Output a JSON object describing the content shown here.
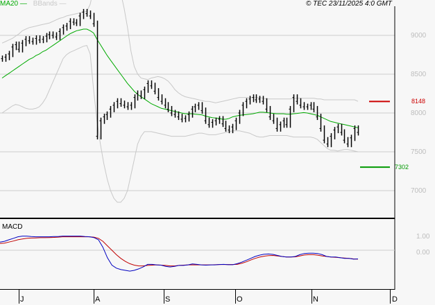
{
  "header": {
    "legend_ma": "MA20",
    "legend_bb": "BBands",
    "copyright": "© TEC 23/11/2025 4:0 GMT"
  },
  "macd_panel": {
    "title": "MACD"
  },
  "colors": {
    "ma20": "#00aa00",
    "bbands": "#c8c8c8",
    "macd": "#0000c0",
    "signal": "#c00000",
    "resistance": "#cc0000",
    "support": "#009900",
    "grid": "#cccccc",
    "bars": "#000000"
  },
  "chart_data": [
    {
      "type": "ohlc",
      "title": "Price",
      "y_ticks": [
        "9000",
        "8500",
        "8000",
        "7500",
        "7000"
      ],
      "ylim": [
        6700,
        9500
      ],
      "x_ticks": [
        "J",
        "A",
        "S",
        "O",
        "N",
        "D"
      ],
      "legend": [
        "MA20",
        "BBands"
      ],
      "annotations": [
        {
          "label": "8148",
          "value": 8148,
          "type": "resistance"
        },
        {
          "label": "7302",
          "value": 7302,
          "type": "support"
        }
      ],
      "closes": [
        8700,
        8720,
        8760,
        8850,
        8880,
        8820,
        8900,
        8950,
        8930,
        8920,
        8960,
        8940,
        8950,
        8990,
        9010,
        9000,
        8980,
        9050,
        9100,
        9120,
        9180,
        9170,
        9160,
        9250,
        9300,
        9280,
        9250,
        9150,
        7700,
        7900,
        7950,
        7980,
        8050,
        8100,
        8150,
        8120,
        8100,
        8080,
        8100,
        8200,
        8250,
        8220,
        8300,
        8380,
        8350,
        8280,
        8200,
        8150,
        8100,
        8050,
        8000,
        7980,
        7950,
        7920,
        7930,
        7980,
        8050,
        8080,
        8100,
        8030,
        7900,
        7850,
        7880,
        7900,
        7920,
        7860,
        7800,
        7780,
        7820,
        7900,
        8000,
        8100,
        8150,
        8180,
        8200,
        8170,
        8180,
        8150,
        8050,
        7950,
        7900,
        7800,
        7850,
        7900,
        7850,
        8050,
        8200,
        8150,
        8100,
        8080,
        8080,
        8100,
        8050,
        7950,
        7800,
        7650,
        7600,
        7700,
        7780,
        7820,
        7750,
        7650,
        7600,
        7680,
        7800,
        7750
      ],
      "ma20": [
        8450,
        8480,
        8510,
        8540,
        8570,
        8600,
        8630,
        8660,
        8690,
        8710,
        8740,
        8760,
        8790,
        8810,
        8840,
        8870,
        8900,
        8930,
        8960,
        8990,
        9020,
        9040,
        9060,
        9070,
        9080,
        9080,
        9060,
        9030,
        8950,
        8880,
        8810,
        8740,
        8680,
        8620,
        8560,
        8500,
        8440,
        8380,
        8330,
        8280,
        8240,
        8210,
        8180,
        8150,
        8120,
        8100,
        8080,
        8060,
        8050,
        8040,
        8030,
        8020,
        8010,
        8000,
        7990,
        7990,
        7990,
        7985,
        7980,
        7975,
        7960,
        7950,
        7940,
        7935,
        7930,
        7920,
        7920,
        7930,
        7950,
        7960,
        7970,
        7975,
        7980,
        7985,
        7990,
        8000,
        8010,
        8010,
        8005,
        8000,
        7995,
        7990,
        7990,
        7990,
        7985,
        7985,
        7990,
        7995,
        8000,
        8005,
        8000,
        7990,
        7980,
        7970,
        7950,
        7930,
        7910,
        7890,
        7880,
        7870,
        7860,
        7850,
        7840,
        7830,
        7820,
        7810
      ],
      "bb_upper": [
        8900,
        8920,
        8940,
        8960,
        8990,
        9020,
        9060,
        9080,
        9100,
        9110,
        9120,
        9130,
        9140,
        9150,
        9160,
        9180,
        9200,
        9220,
        9230,
        9250,
        9260,
        9270,
        9280,
        9290,
        9300,
        9310,
        9400,
        9600,
        9900,
        9950,
        9950,
        9900,
        9850,
        9800,
        9700,
        9550,
        9350,
        9100,
        8800,
        8600,
        8500,
        8450,
        8440,
        8430,
        8450,
        8460,
        8470,
        8460,
        8440,
        8410,
        8360,
        8300,
        8260,
        8230,
        8210,
        8200,
        8190,
        8180,
        8170,
        8160,
        8150,
        8150,
        8140,
        8130,
        8140,
        8150,
        8160,
        8170,
        8180,
        8190,
        8200,
        8200,
        8200,
        8200,
        8200,
        8200,
        8200,
        8190,
        8180,
        8180,
        8180,
        8180,
        8180,
        8180,
        8180,
        8180,
        8190,
        8190,
        8190,
        8190,
        8190,
        8190,
        8190,
        8180,
        8180,
        8170,
        8170,
        8170,
        8170,
        8170,
        8170,
        8170,
        8170,
        8170,
        8170,
        8150
      ],
      "bb_lower": [
        8000,
        8030,
        8060,
        8090,
        8110,
        8100,
        8080,
        8060,
        8050,
        8050,
        8060,
        8080,
        8130,
        8200,
        8300,
        8400,
        8500,
        8600,
        8700,
        8750,
        8780,
        8800,
        8820,
        8840,
        8860,
        8870,
        8760,
        8300,
        7900,
        7600,
        7350,
        7150,
        7000,
        6900,
        6850,
        6850,
        6900,
        7000,
        7200,
        7400,
        7600,
        7700,
        7760,
        7760,
        7760,
        7750,
        7740,
        7730,
        7720,
        7710,
        7700,
        7700,
        7700,
        7700,
        7700,
        7710,
        7720,
        7730,
        7740,
        7740,
        7730,
        7720,
        7720,
        7720,
        7730,
        7740,
        7750,
        7760,
        7770,
        7770,
        7770,
        7760,
        7750,
        7740,
        7720,
        7700,
        7690,
        7690,
        7700,
        7710,
        7710,
        7710,
        7710,
        7710,
        7710,
        7700,
        7690,
        7690,
        7690,
        7690,
        7690,
        7690,
        7680,
        7660,
        7620,
        7580,
        7540,
        7520,
        7520,
        7510,
        7520,
        7530,
        7530,
        7520,
        7510,
        7500
      ]
    },
    {
      "type": "line",
      "title": "MACD",
      "y_ticks": [
        "1.00",
        "0.00"
      ],
      "series": [
        {
          "name": "MACD",
          "values": [
            0.55,
            0.6,
            0.7,
            0.8,
            0.9,
            0.95,
            0.95,
            0.92,
            0.9,
            0.9,
            0.9,
            0.9,
            0.92,
            0.92,
            0.95,
            0.95,
            0.95,
            0.95,
            0.95,
            0.92,
            0.9,
            0.85,
            0.7,
            0.2,
            -0.5,
            -1.0,
            -1.2,
            -1.3,
            -1.35,
            -1.4,
            -1.35,
            -1.25,
            -1.12,
            -0.95,
            -0.95,
            -0.98,
            -1.0,
            -1.08,
            -1.12,
            -1.08,
            -1.02,
            -1.02,
            -0.98,
            -0.92,
            -0.95,
            -0.98,
            -1.0,
            -0.98,
            -0.98,
            -0.96,
            -0.95,
            -0.97,
            -0.97,
            -0.9,
            -0.8,
            -0.68,
            -0.55,
            -0.42,
            -0.33,
            -0.27,
            -0.25,
            -0.28,
            -0.35,
            -0.42,
            -0.45,
            -0.45,
            -0.42,
            -0.3,
            -0.22,
            -0.2,
            -0.2,
            -0.22,
            -0.3,
            -0.42,
            -0.45,
            -0.45,
            -0.5,
            -0.55,
            -0.55,
            -0.6,
            -0.58
          ]
        },
        {
          "name": "Signal",
          "values": [
            0.45,
            0.48,
            0.55,
            0.62,
            0.7,
            0.76,
            0.8,
            0.82,
            0.83,
            0.84,
            0.84,
            0.85,
            0.86,
            0.88,
            0.9,
            0.9,
            0.9,
            0.9,
            0.9,
            0.9,
            0.9,
            0.88,
            0.8,
            0.6,
            0.3,
            0.0,
            -0.3,
            -0.55,
            -0.75,
            -0.9,
            -1.0,
            -1.05,
            -1.05,
            -1.02,
            -1.0,
            -0.98,
            -1.0,
            -1.02,
            -1.05,
            -1.05,
            -1.02,
            -1.0,
            -0.98,
            -0.98,
            -0.98,
            -0.98,
            -0.98,
            -0.98,
            -0.97,
            -0.96,
            -0.96,
            -0.96,
            -0.96,
            -0.95,
            -0.88,
            -0.78,
            -0.66,
            -0.55,
            -0.46,
            -0.4,
            -0.36,
            -0.35,
            -0.38,
            -0.42,
            -0.45,
            -0.45,
            -0.44,
            -0.38,
            -0.32,
            -0.3,
            -0.3,
            -0.33,
            -0.38,
            -0.42,
            -0.46,
            -0.48,
            -0.5,
            -0.52,
            -0.55,
            -0.58,
            -0.6
          ]
        }
      ]
    }
  ]
}
